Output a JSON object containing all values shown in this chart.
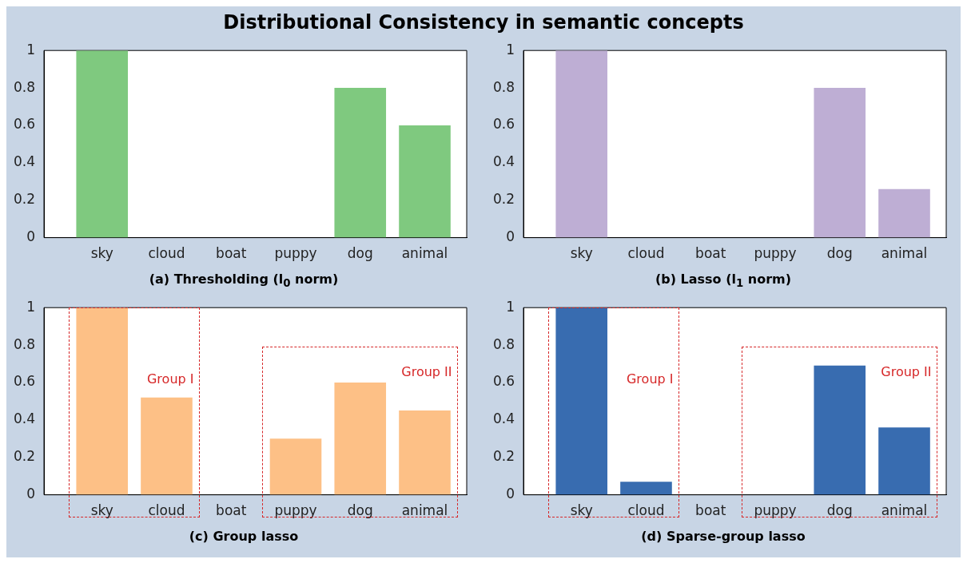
{
  "chart_data": [
    {
      "type": "bar",
      "title": "Distributional Consistency in semantic concepts",
      "xlabel": "(a) Thresholding (l$_{0}$ norm)",
      "categories": [
        "sky",
        "cloud",
        "boat",
        "puppy",
        "dog",
        "animal"
      ],
      "values": [
        1,
        0,
        0,
        0,
        0.8,
        0.6
      ],
      "color": "#7fc97f",
      "ylim": [
        0,
        1
      ],
      "yticks": [
        0,
        0.2,
        0.4,
        0.6,
        0.8,
        1
      ],
      "grid": false,
      "legend": false
    },
    {
      "type": "bar",
      "xlabel": "(b) Lasso (l$_{1}$ norm)",
      "categories": [
        "sky",
        "cloud",
        "boat",
        "puppy",
        "dog",
        "animal"
      ],
      "values": [
        1,
        0,
        0,
        0,
        0.8,
        0.26
      ],
      "color": "#beaed4",
      "ylim": [
        0,
        1
      ],
      "yticks": [
        0,
        0.2,
        0.4,
        0.6,
        0.8,
        1
      ],
      "grid": false,
      "legend": false
    },
    {
      "type": "bar",
      "xlabel": "(c) Group lasso",
      "categories": [
        "sky",
        "cloud",
        "boat",
        "puppy",
        "dog",
        "animal"
      ],
      "values": [
        1,
        0.52,
        0,
        0.3,
        0.6,
        0.45
      ],
      "color": "#fdc086",
      "ylim": [
        0,
        1
      ],
      "yticks": [
        0,
        0.2,
        0.4,
        0.6,
        0.8,
        1
      ],
      "grid": false,
      "legend": false,
      "annotations": [
        "Group I",
        "Group II"
      ]
    },
    {
      "type": "bar",
      "xlabel": "(d) Sparse-group lasso",
      "categories": [
        "sky",
        "cloud",
        "boat",
        "puppy",
        "dog",
        "animal"
      ],
      "values": [
        1,
        0.07,
        0,
        0,
        0.69,
        0.36
      ],
      "color": "#386cb0",
      "ylim": [
        0,
        1
      ],
      "yticks": [
        0,
        0.2,
        0.4,
        0.6,
        0.8,
        1
      ],
      "grid": false,
      "legend": false,
      "annotations": [
        "Group I",
        "Group II"
      ]
    }
  ]
}
